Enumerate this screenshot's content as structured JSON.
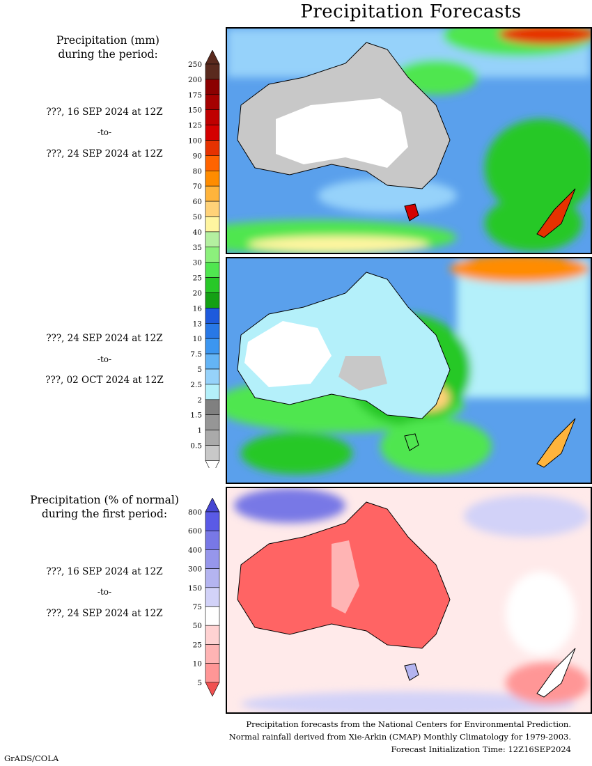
{
  "title": "Precipitation Forecasts",
  "section_mm": {
    "heading_line1": "Precipitation (mm)",
    "heading_line2": "during the period:",
    "period1": {
      "from": "???, 16 SEP 2024 at 12Z",
      "to_word": "-to-",
      "to": "???, 24 SEP 2024 at 12Z"
    },
    "period2": {
      "from": "???, 24 SEP 2024 at 12Z",
      "to_word": "-to-",
      "to": "???, 02 OCT 2024 at 12Z"
    },
    "colorbar": {
      "labels": [
        "250",
        "200",
        "175",
        "150",
        "125",
        "100",
        "90",
        "80",
        "70",
        "60",
        "50",
        "40",
        "35",
        "30",
        "25",
        "20",
        "16",
        "13",
        "10",
        "7.5",
        "5",
        "2.5",
        "2",
        "1.5",
        "1",
        "0.5"
      ],
      "colors": [
        "#5a2a1e",
        "#8b0000",
        "#a50000",
        "#bf0000",
        "#d40000",
        "#e63200",
        "#ff6400",
        "#ff8c00",
        "#ffb43c",
        "#ffd278",
        "#fff5a0",
        "#b4f0a0",
        "#8cf07c",
        "#50e650",
        "#28c828",
        "#14a014",
        "#1e5adc",
        "#2878e6",
        "#3c96f0",
        "#64b4f5",
        "#96d2fa",
        "#b4f0fa",
        "#808080",
        "#969696",
        "#aaaaaa",
        "#c8c8c8",
        "#ffffff"
      ],
      "top_arrow_color": "#5a2a1e",
      "bottom_arrow_color": "#ffffff"
    }
  },
  "section_pct": {
    "heading_line1": "Precipitation (% of normal)",
    "heading_line2": "during the first period:",
    "period": {
      "from": "???, 16 SEP 2024 at 12Z",
      "to_word": "-to-",
      "to": "???, 24 SEP 2024 at 12Z"
    },
    "colorbar": {
      "labels": [
        "800",
        "600",
        "400",
        "300",
        "150",
        "75",
        "50",
        "25",
        "10",
        "5"
      ],
      "colors": [
        "#5a5ae6",
        "#7878e6",
        "#9696eb",
        "#b4b4f0",
        "#d2d2f8",
        "#ffffff",
        "#ffd2d2",
        "#ffb4b4",
        "#ff9696",
        "#ff7878"
      ],
      "top_arrow_color": "#4646d2",
      "bottom_arrow_color": "#f05050"
    }
  },
  "footer": {
    "line1": "Precipitation forecasts from the National Centers for Environmental Prediction.",
    "line2": "Normal rainfall derived from Xie-Arkin (CMAP) Monthly Climatology for 1979-2003.",
    "line3": "Forecast Initialization Time: 12Z16SEP2024"
  },
  "credit": "GrADS/COLA"
}
